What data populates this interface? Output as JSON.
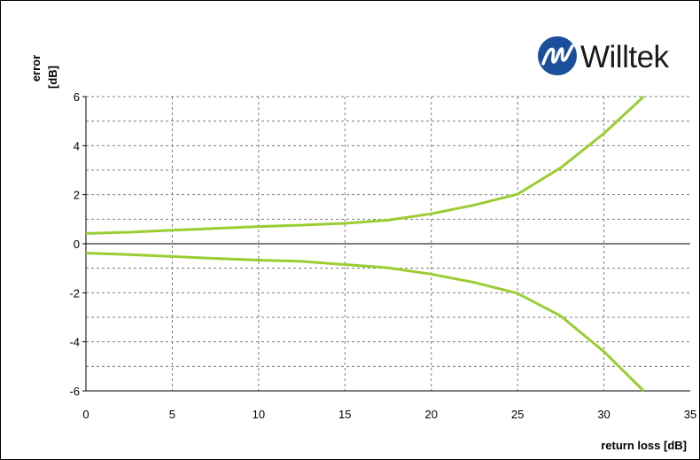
{
  "brand": {
    "name": "Willtek"
  },
  "chart_data": {
    "type": "line",
    "xlabel": "return loss [dB]",
    "ylabel": "error\n[dB]",
    "xlim": [
      0,
      35
    ],
    "ylim": [
      -6,
      6
    ],
    "x_ticks": [
      0,
      5,
      10,
      15,
      20,
      25,
      30,
      35
    ],
    "y_ticks": [
      -6,
      -4,
      -2,
      0,
      2,
      4,
      6
    ],
    "y_tick_labels": [
      "-6",
      "-4",
      "-2",
      "0",
      "2",
      "4",
      "6"
    ],
    "grid": true,
    "line_color": "#9ACD32",
    "x": [
      0,
      2.5,
      5,
      7.5,
      10,
      12.5,
      15,
      17.5,
      20,
      22.5,
      25,
      27.5,
      30,
      32.3
    ],
    "series": [
      {
        "values": [
          0.42,
          0.47,
          0.55,
          0.62,
          0.7,
          0.76,
          0.83,
          0.96,
          1.22,
          1.58,
          2.02,
          3.1,
          4.5,
          6.0
        ]
      },
      {
        "values": [
          -0.38,
          -0.44,
          -0.52,
          -0.6,
          -0.67,
          -0.72,
          -0.85,
          -0.98,
          -1.24,
          -1.58,
          -2.02,
          -2.95,
          -4.4,
          -6.0
        ]
      }
    ]
  }
}
